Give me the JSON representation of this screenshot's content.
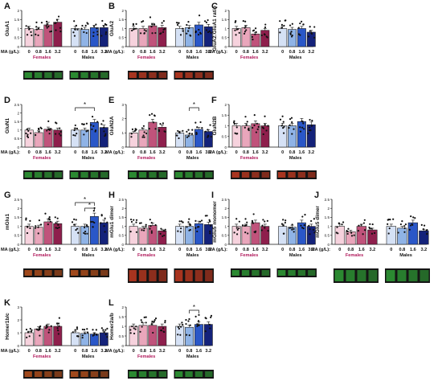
{
  "figure": {
    "x_prefix": "MA (g/L):",
    "dose_labels": [
      "0",
      "0.8",
      "1.6",
      "3.2"
    ],
    "group_names": [
      "Females",
      "Males"
    ],
    "colors": {
      "female": [
        "#f6d2dd",
        "#e9a6bb",
        "#c0537b",
        "#8e1f4c"
      ],
      "male": [
        "#d5e1f5",
        "#8fb3e6",
        "#2a57c8",
        "#14227a"
      ],
      "ns_label_magenta": "#b0175a",
      "blot_green": "#2f9e36",
      "blot_red": "#c23a21",
      "blot_orange": "#b9521d"
    }
  },
  "chart_data": [
    {
      "type": "bar",
      "panel": "A",
      "ylabel": "GluA1",
      "ylim": [
        0,
        2.0
      ],
      "yticks": [
        0,
        0.5,
        1.0,
        1.5,
        2.0
      ],
      "categories": [
        "0",
        "0.8",
        "1.6",
        "3.2"
      ],
      "series": [
        {
          "name": "Females",
          "values": [
            1.0,
            0.95,
            1.2,
            1.35
          ]
        },
        {
          "name": "Males",
          "values": [
            1.0,
            0.95,
            1.05,
            1.05
          ]
        }
      ],
      "significance": [],
      "blot": [
        "green",
        "green"
      ]
    },
    {
      "type": "bar",
      "panel": "B",
      "ylabel": "GluA2",
      "ylim": [
        0,
        2.0
      ],
      "yticks": [
        0,
        0.5,
        1.0,
        1.5,
        2.0
      ],
      "categories": [
        "0",
        "0.8",
        "1.6",
        "3.2"
      ],
      "series": [
        {
          "name": "Females",
          "values": [
            1.0,
            1.0,
            1.15,
            1.05
          ]
        },
        {
          "name": "Males",
          "values": [
            1.0,
            1.05,
            1.2,
            1.1
          ]
        }
      ],
      "significance": [],
      "blot": [
        "red",
        "red"
      ]
    },
    {
      "type": "bar",
      "panel": "C",
      "ylabel": "GluA2:GluA1 ratio",
      "ylim": [
        0,
        2.0
      ],
      "yticks": [
        0,
        0.5,
        1.0,
        1.5,
        2.0
      ],
      "categories": [
        "0",
        "0.8",
        "1.6",
        "3.2"
      ],
      "series": [
        {
          "name": "Females",
          "values": [
            1.0,
            1.05,
            0.7,
            0.9
          ]
        },
        {
          "name": "Males",
          "values": [
            1.0,
            0.95,
            1.0,
            0.8
          ]
        }
      ],
      "significance": [],
      "blot": null
    },
    {
      "type": "bar",
      "panel": "D",
      "ylabel": "GluN1",
      "ylim": [
        0,
        2.5
      ],
      "yticks": [
        0,
        0.5,
        1.0,
        1.5,
        2.0,
        2.5
      ],
      "categories": [
        "0",
        "0.8",
        "1.6",
        "3.2"
      ],
      "series": [
        {
          "name": "Females",
          "values": [
            1.0,
            0.85,
            1.05,
            1.0
          ]
        },
        {
          "name": "Males",
          "values": [
            1.0,
            1.0,
            1.45,
            1.15
          ]
        }
      ],
      "significance": [
        {
          "group": 1,
          "from": 0,
          "to": 2,
          "label": "*"
        }
      ],
      "blot": [
        "green",
        "green"
      ]
    },
    {
      "type": "bar",
      "panel": "E",
      "ylabel": "GluN2A",
      "ylim": [
        0,
        3.0
      ],
      "yticks": [
        0,
        1,
        2,
        3
      ],
      "categories": [
        "0",
        "0.8",
        "1.6",
        "3.2"
      ],
      "series": [
        {
          "name": "Females",
          "values": [
            1.0,
            1.2,
            1.75,
            1.4
          ]
        },
        {
          "name": "Males",
          "values": [
            1.0,
            0.85,
            1.25,
            1.1
          ]
        }
      ],
      "significance": [
        {
          "group": 1,
          "from": 1,
          "to": 2,
          "label": "*"
        }
      ],
      "blot": [
        "green",
        "green"
      ]
    },
    {
      "type": "bar",
      "panel": "F",
      "ylabel": "GluN2B",
      "ylim": [
        0,
        2.0
      ],
      "yticks": [
        0,
        0.5,
        1.0,
        1.5,
        2.0
      ],
      "categories": [
        "0",
        "0.8",
        "1.6",
        "3.2"
      ],
      "series": [
        {
          "name": "Females",
          "values": [
            1.0,
            1.0,
            1.1,
            1.0
          ]
        },
        {
          "name": "Males",
          "values": [
            1.0,
            1.0,
            1.2,
            1.05
          ]
        }
      ],
      "significance": [],
      "blot": [
        "red",
        "red"
      ]
    },
    {
      "type": "bar",
      "panel": "G",
      "ylabel": "mGlu1",
      "ylim": [
        0,
        2.5
      ],
      "yticks": [
        0,
        0.5,
        1.0,
        1.5,
        2.0,
        2.5
      ],
      "categories": [
        "0",
        "0.8",
        "1.6",
        "3.2"
      ],
      "series": [
        {
          "name": "Females",
          "values": [
            1.0,
            0.95,
            1.25,
            1.15
          ]
        },
        {
          "name": "Males",
          "values": [
            1.0,
            1.0,
            1.55,
            1.2
          ]
        }
      ],
      "significance": [
        {
          "group": 1,
          "from": 0,
          "to": 2,
          "label": "*"
        },
        {
          "group": 1,
          "from": 1,
          "to": 2,
          "label": "*"
        }
      ],
      "blot": [
        "orange",
        "orange"
      ]
    },
    {
      "type": "bar",
      "panel": "H",
      "ylabel": "mGlu1 dimer",
      "ylim": [
        0,
        2.5
      ],
      "yticks": [
        0,
        0.5,
        1.0,
        1.5,
        2.0,
        2.5
      ],
      "categories": [
        "0",
        "0.8",
        "1.6",
        "3.2"
      ],
      "series": [
        {
          "name": "Females",
          "values": [
            1.0,
            0.9,
            1.05,
            0.75
          ]
        },
        {
          "name": "Males",
          "values": [
            1.0,
            1.0,
            1.15,
            1.1
          ]
        }
      ],
      "significance": [],
      "blot": [
        "red",
        "red"
      ]
    },
    {
      "type": "bar",
      "panel": "I",
      "ylabel": "mGlu5 monomer",
      "ylim": [
        0,
        2.5
      ],
      "yticks": [
        0,
        0.5,
        1.0,
        1.5,
        2.0,
        2.5
      ],
      "categories": [
        "0",
        "0.8",
        "1.6",
        "3.2"
      ],
      "series": [
        {
          "name": "Females",
          "values": [
            1.0,
            1.0,
            1.2,
            1.0
          ]
        },
        {
          "name": "Males",
          "values": [
            1.0,
            0.95,
            1.2,
            1.0
          ]
        }
      ],
      "significance": [],
      "blot": [
        "green",
        "green"
      ]
    },
    {
      "type": "bar",
      "panel": "J",
      "ylabel": "mGlu5 dimer",
      "ylim": [
        0,
        2.5
      ],
      "yticks": [
        0,
        0.5,
        1.0,
        1.5,
        2.0,
        2.5
      ],
      "categories": [
        "0",
        "0.8",
        "1.6",
        "3.2"
      ],
      "series": [
        {
          "name": "Females",
          "values": [
            1.0,
            0.7,
            1.0,
            0.8
          ]
        },
        {
          "name": "Males",
          "values": [
            1.0,
            0.9,
            1.2,
            0.75
          ]
        }
      ],
      "significance": [],
      "blot": [
        "green",
        "green"
      ]
    },
    {
      "type": "bar",
      "panel": "K",
      "ylabel": "Homer1b/c",
      "ylim": [
        0,
        3.0
      ],
      "yticks": [
        0,
        1,
        2,
        3
      ],
      "categories": [
        "0",
        "0.8",
        "1.6",
        "3.2"
      ],
      "series": [
        {
          "name": "Females",
          "values": [
            1.0,
            1.3,
            1.5,
            1.5
          ]
        },
        {
          "name": "Males",
          "values": [
            1.0,
            0.95,
            0.9,
            1.0
          ]
        }
      ],
      "significance": [],
      "blot": [
        "orange",
        "orange"
      ]
    },
    {
      "type": "bar",
      "panel": "L",
      "ylabel": "Homer2a/b",
      "ylim": [
        0,
        2.0
      ],
      "yticks": [
        0,
        0.5,
        1.0,
        1.5,
        2.0
      ],
      "categories": [
        "0",
        "0.8",
        "1.6",
        "3.2"
      ],
      "series": [
        {
          "name": "Females",
          "values": [
            1.0,
            1.05,
            1.05,
            1.0
          ]
        },
        {
          "name": "Males",
          "values": [
            1.0,
            0.95,
            1.1,
            1.1
          ]
        }
      ],
      "significance": [
        {
          "group": 1,
          "from": 1,
          "to": 2,
          "label": "*"
        }
      ],
      "blot": [
        "green",
        "green"
      ]
    }
  ]
}
